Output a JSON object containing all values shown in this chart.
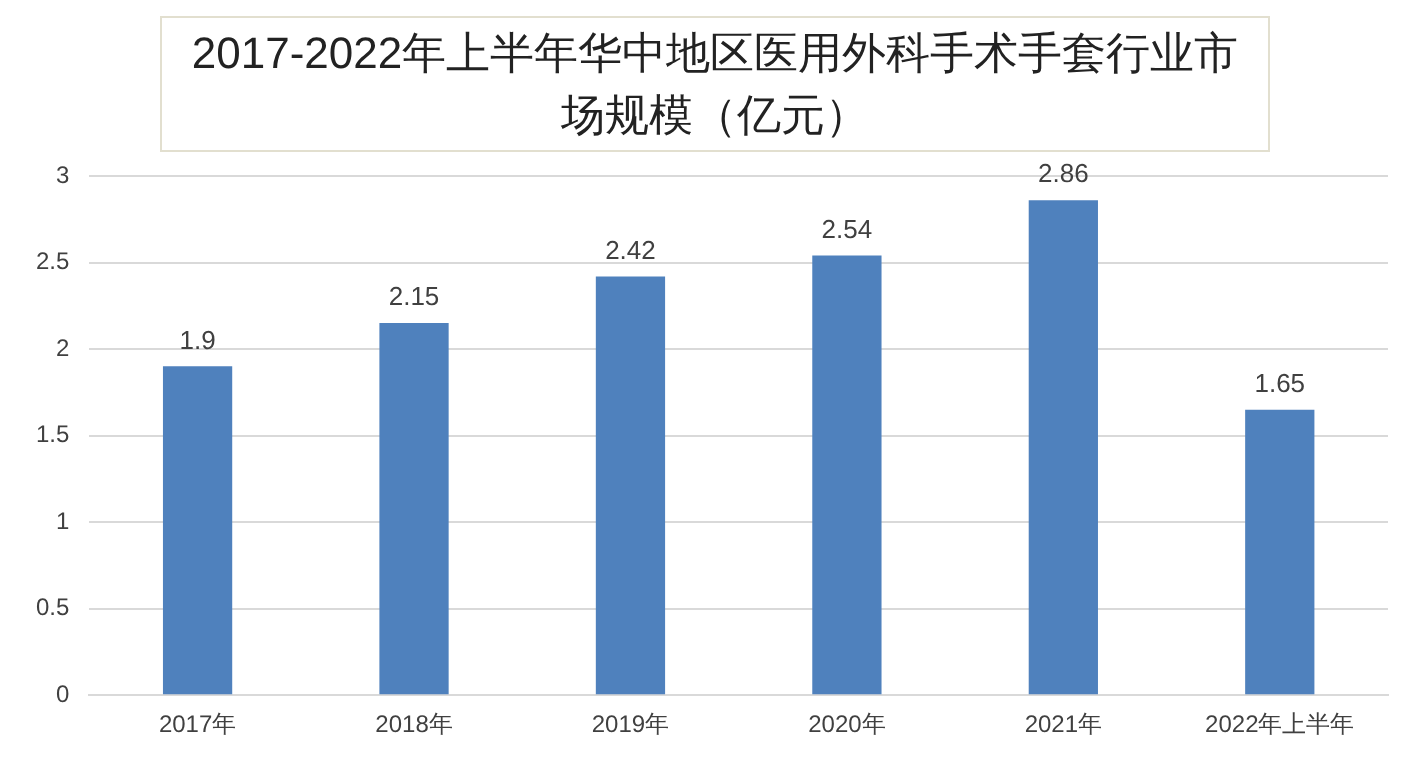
{
  "chart_data": {
    "type": "bar",
    "title": "2017-2022年上半年华中地区医用外科手术手套行业市场规模（亿元）",
    "categories": [
      "2017年",
      "2018年",
      "2019年",
      "2020年",
      "2021年",
      "2022年上半年"
    ],
    "values": [
      1.9,
      2.15,
      2.42,
      2.54,
      2.86,
      1.65
    ],
    "color": "#4f81bd",
    "ylim": [
      0,
      3
    ],
    "yticks": [
      0,
      0.5,
      1,
      1.5,
      2,
      2.5,
      3
    ],
    "grid": "y",
    "data_labels": true,
    "legend": false
  }
}
